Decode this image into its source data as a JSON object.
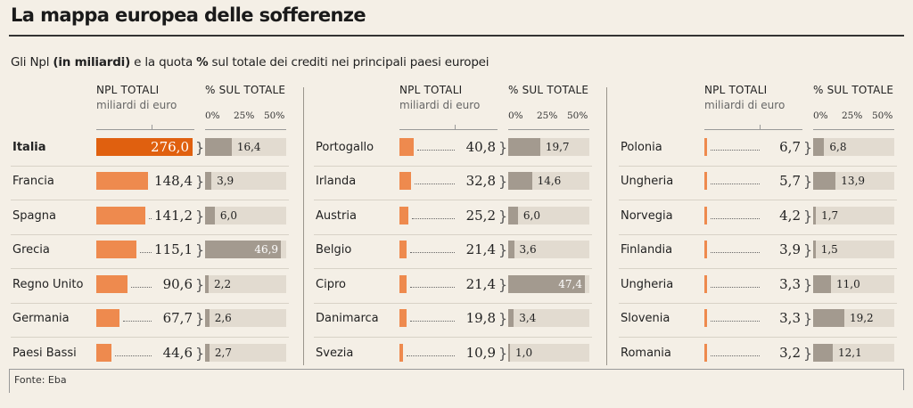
{
  "title": "La mappa europea delle sofferenze",
  "subtitle": {
    "part1": "Gli Npl ",
    "bold1": "(in miliardi)",
    "part2": " e la quota ",
    "bold2": "%",
    "part3": " sul totale dei crediti nei principali paesi europei"
  },
  "source": "Fonte: Eba",
  "headers": {
    "npl_title": "NPL TOTALI",
    "npl_unit": "miliardi di euro",
    "pct_title": "% SUL TOTALE",
    "pct_ticks": [
      "0%",
      "25%",
      "50%"
    ]
  },
  "colors": {
    "npl_bar": "#ee8a4e",
    "npl_bar_highlight": "#e0600f",
    "pct_bar": "#a39a8f",
    "pct_track": "#e2dbd0",
    "background": "#f4efe6"
  },
  "chart_data": {
    "type": "bar",
    "title": "La mappa europea delle sofferenze",
    "subtitle": "Gli Npl (in miliardi) e la quota % sul totale dei crediti nei principali paesi europei",
    "npl_axis_max": 276.0,
    "pct_axis": [
      0,
      50
    ],
    "series": [
      {
        "name": "NPL TOTALI",
        "unit": "miliardi di euro"
      },
      {
        "name": "% SUL TOTALE",
        "unit": "%"
      }
    ],
    "panels": [
      {
        "rows": [
          {
            "country": "Italia",
            "npl": 276.0,
            "npl_label": "276,0",
            "pct": 16.4,
            "pct_label": "16,4",
            "highlight": true
          },
          {
            "country": "Francia",
            "npl": 148.4,
            "npl_label": "148,4",
            "pct": 3.9,
            "pct_label": "3,9"
          },
          {
            "country": "Spagna",
            "npl": 141.2,
            "npl_label": "141,2",
            "pct": 6.0,
            "pct_label": "6,0"
          },
          {
            "country": "Grecia",
            "npl": 115.1,
            "npl_label": "115,1",
            "pct": 46.9,
            "pct_label": "46,9"
          },
          {
            "country": "Regno Unito",
            "npl": 90.6,
            "npl_label": "90,6",
            "pct": 2.2,
            "pct_label": "2,2"
          },
          {
            "country": "Germania",
            "npl": 67.7,
            "npl_label": "67,7",
            "pct": 2.6,
            "pct_label": "2,6"
          },
          {
            "country": "Paesi Bassi",
            "npl": 44.6,
            "npl_label": "44,6",
            "pct": 2.7,
            "pct_label": "2,7"
          }
        ]
      },
      {
        "rows": [
          {
            "country": "Portogallo",
            "npl": 40.8,
            "npl_label": "40,8",
            "pct": 19.7,
            "pct_label": "19,7"
          },
          {
            "country": "Irlanda",
            "npl": 32.8,
            "npl_label": "32,8",
            "pct": 14.6,
            "pct_label": "14,6"
          },
          {
            "country": "Austria",
            "npl": 25.2,
            "npl_label": "25,2",
            "pct": 6.0,
            "pct_label": "6,0"
          },
          {
            "country": "Belgio",
            "npl": 21.4,
            "npl_label": "21,4",
            "pct": 3.6,
            "pct_label": "3,6"
          },
          {
            "country": "Cipro",
            "npl": 21.4,
            "npl_label": "21,4",
            "pct": 47.4,
            "pct_label": "47,4"
          },
          {
            "country": "Danimarca",
            "npl": 19.8,
            "npl_label": "19,8",
            "pct": 3.4,
            "pct_label": "3,4"
          },
          {
            "country": "Svezia",
            "npl": 10.9,
            "npl_label": "10,9",
            "pct": 1.0,
            "pct_label": "1,0"
          }
        ]
      },
      {
        "rows": [
          {
            "country": "Polonia",
            "npl": 6.7,
            "npl_label": "6,7",
            "pct": 6.8,
            "pct_label": "6,8"
          },
          {
            "country": "Ungheria",
            "npl": 5.7,
            "npl_label": "5,7",
            "pct": 13.9,
            "pct_label": "13,9"
          },
          {
            "country": "Norvegia",
            "npl": 4.2,
            "npl_label": "4,2",
            "pct": 1.7,
            "pct_label": "1,7"
          },
          {
            "country": "Finlandia",
            "npl": 3.9,
            "npl_label": "3,9",
            "pct": 1.5,
            "pct_label": "1,5"
          },
          {
            "country": "Ungheria",
            "npl": 3.3,
            "npl_label": "3,3",
            "pct": 11.0,
            "pct_label": "11,0"
          },
          {
            "country": "Slovenia",
            "npl": 3.3,
            "npl_label": "3,3",
            "pct": 19.2,
            "pct_label": "19,2"
          },
          {
            "country": "Romania",
            "npl": 3.2,
            "npl_label": "3,2",
            "pct": 12.1,
            "pct_label": "12,1"
          }
        ]
      }
    ]
  }
}
